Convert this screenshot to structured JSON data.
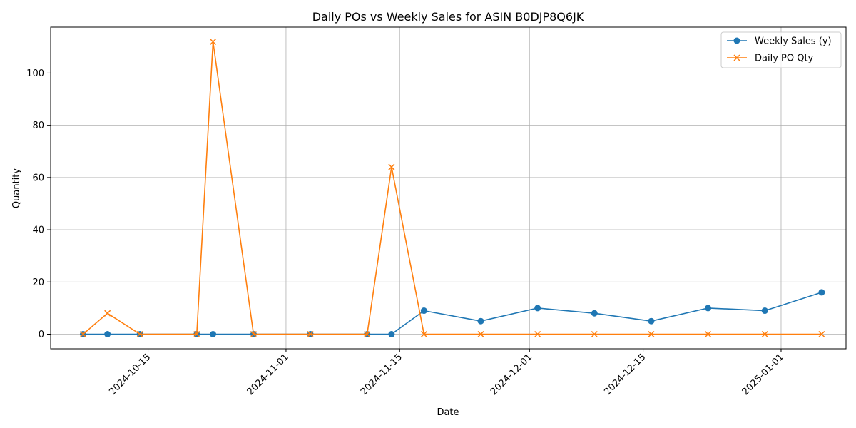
{
  "chart_data": {
    "type": "line",
    "title": "Daily POs vs Weekly Sales for ASIN B0DJP8Q6JK",
    "xlabel": "Date",
    "ylabel": "Quantity",
    "x_ticks": [
      "2024-10-15",
      "2024-11-01",
      "2024-11-15",
      "2024-12-01",
      "2024-12-15",
      "2025-01-01"
    ],
    "y_ticks": [
      0,
      20,
      40,
      60,
      80,
      100
    ],
    "xlim": [
      "2024-10-03",
      "2025-01-09"
    ],
    "ylim": [
      -5.6,
      117.6
    ],
    "grid": true,
    "legend_position": "top-right",
    "series": [
      {
        "name": "Weekly Sales (y)",
        "color": "#1f77b4",
        "marker": "circle",
        "points": [
          {
            "x": "2024-10-07",
            "y": 0
          },
          {
            "x": "2024-10-10",
            "y": 0
          },
          {
            "x": "2024-10-14",
            "y": 0
          },
          {
            "x": "2024-10-21",
            "y": 0
          },
          {
            "x": "2024-10-23",
            "y": 0
          },
          {
            "x": "2024-10-28",
            "y": 0
          },
          {
            "x": "2024-11-04",
            "y": 0
          },
          {
            "x": "2024-11-11",
            "y": 0
          },
          {
            "x": "2024-11-14",
            "y": 0
          },
          {
            "x": "2024-11-18",
            "y": 9
          },
          {
            "x": "2024-11-25",
            "y": 5
          },
          {
            "x": "2024-12-02",
            "y": 10
          },
          {
            "x": "2024-12-09",
            "y": 8
          },
          {
            "x": "2024-12-16",
            "y": 5
          },
          {
            "x": "2024-12-23",
            "y": 10
          },
          {
            "x": "2024-12-30",
            "y": 9
          },
          {
            "x": "2025-01-06",
            "y": 16
          }
        ]
      },
      {
        "name": "Daily PO Qty",
        "color": "#ff7f0e",
        "marker": "x",
        "points": [
          {
            "x": "2024-10-07",
            "y": 0
          },
          {
            "x": "2024-10-10",
            "y": 8
          },
          {
            "x": "2024-10-14",
            "y": 0
          },
          {
            "x": "2024-10-21",
            "y": 0
          },
          {
            "x": "2024-10-23",
            "y": 112
          },
          {
            "x": "2024-10-28",
            "y": 0
          },
          {
            "x": "2024-11-04",
            "y": 0
          },
          {
            "x": "2024-11-11",
            "y": 0
          },
          {
            "x": "2024-11-14",
            "y": 64
          },
          {
            "x": "2024-11-18",
            "y": 0
          },
          {
            "x": "2024-11-25",
            "y": 0
          },
          {
            "x": "2024-12-02",
            "y": 0
          },
          {
            "x": "2024-12-09",
            "y": 0
          },
          {
            "x": "2024-12-16",
            "y": 0
          },
          {
            "x": "2024-12-23",
            "y": 0
          },
          {
            "x": "2024-12-30",
            "y": 0
          },
          {
            "x": "2025-01-06",
            "y": 0
          }
        ]
      }
    ]
  }
}
